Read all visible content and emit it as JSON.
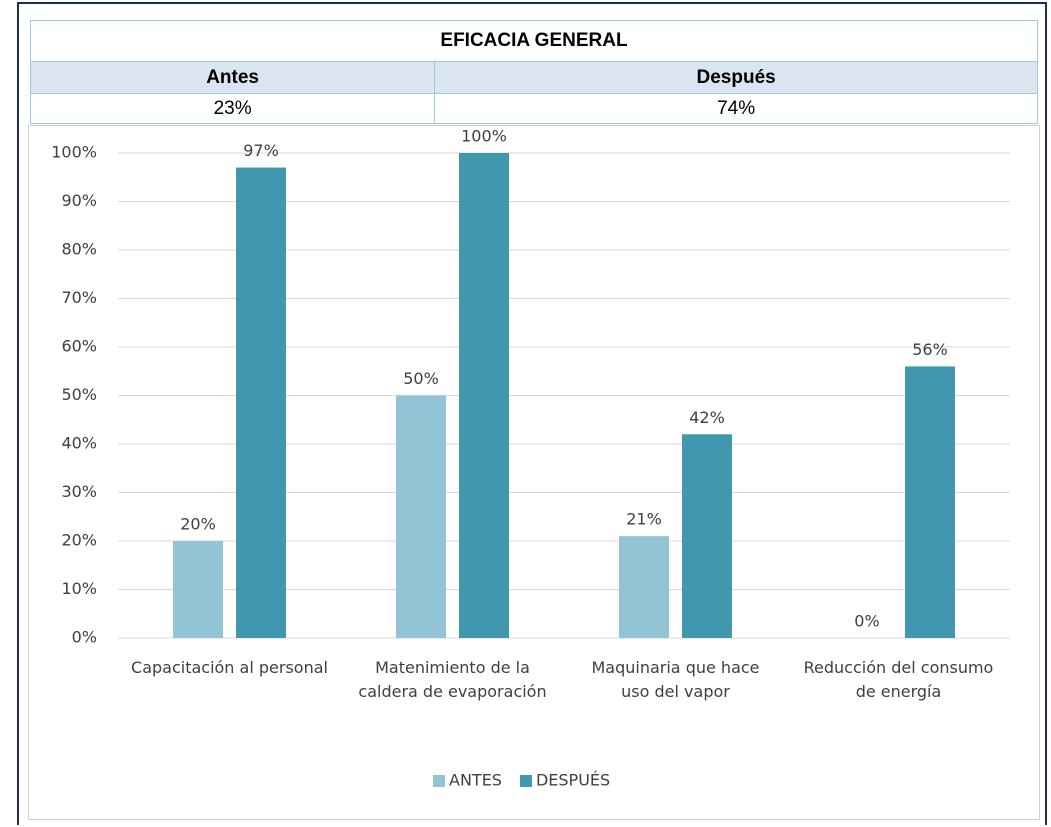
{
  "table": {
    "title": "EFICACIA GENERAL",
    "headers": [
      "Antes",
      "Después"
    ],
    "values": [
      "23%",
      "74%"
    ]
  },
  "chart_data": {
    "type": "bar",
    "categories": [
      "Capacitación al personal",
      "Matenimiento de la caldera de evaporación",
      "Maquinaria que hace uso del vapor",
      "Reducción del consumo de energía"
    ],
    "series": [
      {
        "name": "ANTES",
        "color": "#93c4d5",
        "values": [
          20,
          50,
          21,
          0
        ],
        "value_labels": [
          "20%",
          "50%",
          "21%",
          "0%"
        ]
      },
      {
        "name": "DESPUÉS",
        "color": "#4198ae",
        "values": [
          97,
          100,
          42,
          56
        ],
        "value_labels": [
          "97%",
          "100%",
          "42%",
          "56%"
        ]
      }
    ],
    "ylim": [
      0,
      100
    ],
    "yticks": [
      {
        "value": 0,
        "label": "0%"
      },
      {
        "value": 10,
        "label": "10%"
      },
      {
        "value": 20,
        "label": "20%"
      },
      {
        "value": 30,
        "label": "30%"
      },
      {
        "value": 40,
        "label": "40%"
      },
      {
        "value": 50,
        "label": "50%"
      },
      {
        "value": 60,
        "label": "60%"
      },
      {
        "value": 70,
        "label": "70%"
      },
      {
        "value": 80,
        "label": "80%"
      },
      {
        "value": 90,
        "label": "90%"
      },
      {
        "value": 100,
        "label": "100%"
      }
    ],
    "grid": true,
    "legend": "bottom"
  }
}
